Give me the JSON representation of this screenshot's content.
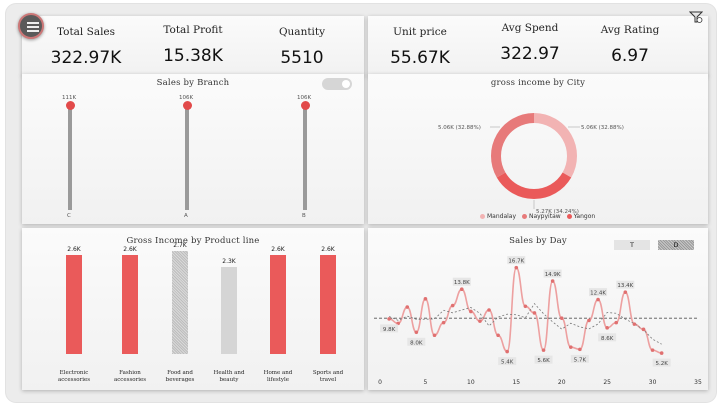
{
  "kpis_left": [
    {
      "label": "Total Sales",
      "value": "322.97K"
    },
    {
      "label": "Total Profit",
      "value": "15.38K"
    },
    {
      "label": "Quantity",
      "value": "5510"
    }
  ],
  "kpis_right": [
    {
      "label": "Unit price",
      "value": "55.67K"
    },
    {
      "label": "Avg Spend",
      "value": "322.97"
    },
    {
      "label": "Avg Rating",
      "value": "6.97"
    }
  ],
  "sales_by_branch": {
    "title": "Sales by Branch",
    "branches": [
      {
        "name": "C",
        "value_label": "111K",
        "fraction": 1.0
      },
      {
        "name": "A",
        "value_label": "106K",
        "fraction": 1.0
      },
      {
        "name": "B",
        "value_label": "106K",
        "fraction": 1.0
      }
    ]
  },
  "gross_income_city": {
    "title": "gross income by City",
    "labels": [
      "5.06K (32.88%)",
      "5.06K (32.88%)",
      "5.27K (34.24%)"
    ],
    "legend": [
      "Mandalay",
      "Naypyitaw",
      "Yangon"
    ]
  },
  "gross_income_product": {
    "title": "Gross Income by Product line",
    "items": [
      {
        "category": "Electronic accessories",
        "label": "2.6K",
        "value": 2.6,
        "style": "red"
      },
      {
        "category": "Fashion accessories",
        "label": "2.6K",
        "value": 2.6,
        "style": "red"
      },
      {
        "category": "Food and beverages",
        "label": "2.7K",
        "value": 2.7,
        "style": "hatch"
      },
      {
        "category": "Health and beauty",
        "label": "2.3K",
        "value": 2.3,
        "style": "grey"
      },
      {
        "category": "Home and lifestyle",
        "label": "2.6K",
        "value": 2.6,
        "style": "red"
      },
      {
        "category": "Sports and travel",
        "label": "2.6K",
        "value": 2.6,
        "style": "red"
      }
    ]
  },
  "sales_by_day": {
    "title": "Sales by Day",
    "buttons": [
      "T",
      "D"
    ],
    "x_ticks": [
      "0",
      "5",
      "10",
      "15",
      "20",
      "25",
      "30",
      "35"
    ]
  },
  "chart_data": [
    {
      "type": "bar",
      "title": "Gross Income by Product line",
      "categories": [
        "Electronic accessories",
        "Fashion accessories",
        "Food and beverages",
        "Health and beauty",
        "Home and lifestyle",
        "Sports and travel"
      ],
      "values": [
        2.6,
        2.6,
        2.7,
        2.3,
        2.6,
        2.6
      ],
      "unit": "K"
    },
    {
      "type": "pie",
      "title": "gross income by City",
      "categories": [
        "Mandalay",
        "Naypyitaw",
        "Yangon"
      ],
      "values": [
        5.06,
        5.27,
        5.06
      ],
      "percents": [
        32.88,
        34.24,
        32.88
      ]
    },
    {
      "type": "line",
      "title": "Sales by Day",
      "x": [
        1,
        2,
        3,
        4,
        5,
        6,
        7,
        8,
        9,
        10,
        11,
        12,
        13,
        14,
        15,
        16,
        17,
        18,
        19,
        20,
        21,
        22,
        23,
        24,
        25,
        26,
        27,
        28,
        29,
        30,
        31
      ],
      "values": [
        9.8,
        9.2,
        11.4,
        8.0,
        12.5,
        7.6,
        9.3,
        11.6,
        13.8,
        10.8,
        9.5,
        11.0,
        7.6,
        5.4,
        16.7,
        11.5,
        10.6,
        5.6,
        14.9,
        9.9,
        6.0,
        5.7,
        9.6,
        12.4,
        8.6,
        9.3,
        13.4,
        9.1,
        8.4,
        5.6,
        5.2
      ],
      "annotations": [
        "9.8K",
        "8.0K",
        "13.8K",
        "5.4K",
        "16.7K",
        "5.6K",
        "14.9K",
        "5.7K",
        "12.4K",
        "8.6K",
        "13.4K",
        "5.2K"
      ],
      "xlim": [
        0,
        35
      ],
      "average_line": 9.9
    }
  ]
}
